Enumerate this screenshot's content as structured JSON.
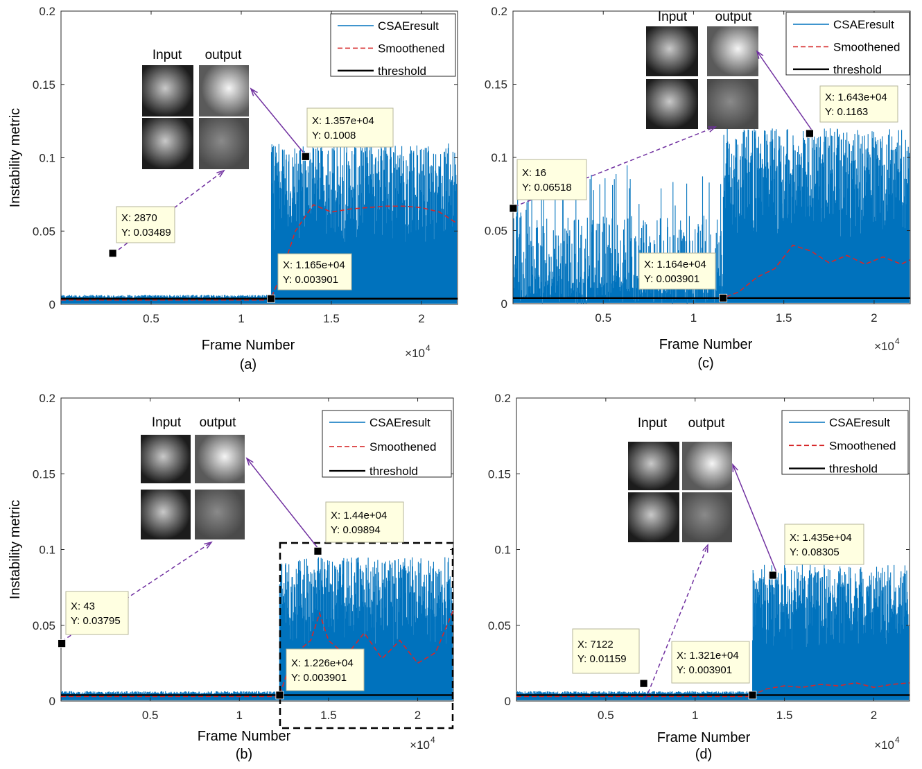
{
  "figure": {
    "ylabel": "Instability metric",
    "xlabel": "Frame Number",
    "x_exponent": "×10",
    "x_exponent_power": "4",
    "legend": [
      "CSAEresult",
      "Smoothened",
      "threshold"
    ],
    "inset_labels": [
      "Input",
      "output"
    ],
    "colors": {
      "series": "#0072BD",
      "smoothed": "#D62728",
      "threshold": "#000000",
      "arrow": "#7030A0",
      "datatip_bg": "#FFFFE1",
      "datatip_border": "#B5B59A"
    }
  },
  "chart_data": [
    {
      "panel": "(a)",
      "type": "line",
      "xlim": [
        0,
        22000
      ],
      "ylim": [
        0,
        0.2
      ],
      "xticks": [
        "0.5",
        "1",
        "1.5",
        "2"
      ],
      "yticks": [
        "0",
        "0.05",
        "0.1",
        "0.15",
        "0.2"
      ],
      "threshold": 0.003901,
      "onset": 11650,
      "noise_high": [
        0.002,
        0.11
      ],
      "smoothened": {
        "x": [
          11650,
          12200,
          13000,
          14000,
          15000,
          16000,
          17000,
          18000,
          19000,
          20000,
          21000,
          22000
        ],
        "y": [
          0.004,
          0.02,
          0.05,
          0.068,
          0.063,
          0.065,
          0.066,
          0.067,
          0.067,
          0.066,
          0.063,
          0.055
        ]
      },
      "datatips": [
        {
          "x": 2870,
          "y": 0.03489,
          "label_x": "X: 2870",
          "label_y": "Y: 0.03489"
        },
        {
          "x": 11650,
          "y": 0.003901,
          "label_x": "X: 1.165e+04",
          "label_y": "Y: 0.003901"
        },
        {
          "x": 13570,
          "y": 0.1008,
          "label_x": "X: 1.357e+04",
          "label_y": "Y: 0.1008"
        }
      ],
      "dashed_box": false
    },
    {
      "panel": "(c)",
      "type": "line",
      "xlim": [
        0,
        22000
      ],
      "ylim": [
        0,
        0.2
      ],
      "xticks": [
        "0.5",
        "1",
        "1.5",
        "2"
      ],
      "yticks": [
        "0",
        "0.05",
        "0.1",
        "0.15",
        "0.2"
      ],
      "threshold": 0.003901,
      "onset": 11640,
      "noise_low": [
        0.0,
        0.12
      ],
      "noise_high": [
        0.002,
        0.12
      ],
      "smoothened": {
        "x": [
          0,
          11640,
          12500,
          13500,
          14500,
          15500,
          16500,
          17500,
          18500,
          19500,
          20500,
          21500,
          22000
        ],
        "y": [
          0.004,
          0.004,
          0.008,
          0.018,
          0.024,
          0.04,
          0.036,
          0.028,
          0.033,
          0.027,
          0.032,
          0.027,
          0.03
        ]
      },
      "datatips": [
        {
          "x": 16,
          "y": 0.06518,
          "label_x": "X: 16",
          "label_y": "Y: 0.06518"
        },
        {
          "x": 11640,
          "y": 0.003901,
          "label_x": "X: 1.164e+04",
          "label_y": "Y: 0.003901"
        },
        {
          "x": 16430,
          "y": 0.1163,
          "label_x": "X: 1.643e+04",
          "label_y": "Y: 0.1163"
        }
      ],
      "dashed_box": false
    },
    {
      "panel": "(b)",
      "type": "line",
      "xlim": [
        0,
        22000
      ],
      "ylim": [
        0,
        0.2
      ],
      "xticks": [
        "0.5",
        "1",
        "1.5",
        "2"
      ],
      "yticks": [
        "0",
        "0.05",
        "0.1",
        "0.15",
        "0.2"
      ],
      "threshold": 0.003901,
      "onset": 12260,
      "noise_high": [
        0.002,
        0.095
      ],
      "smoothened": {
        "x": [
          12260,
          13000,
          14000,
          14500,
          15000,
          16000,
          17000,
          18000,
          19000,
          20000,
          21000,
          22000
        ],
        "y": [
          0.004,
          0.03,
          0.04,
          0.058,
          0.04,
          0.03,
          0.045,
          0.028,
          0.04,
          0.025,
          0.032,
          0.06
        ]
      },
      "datatips": [
        {
          "x": 43,
          "y": 0.03795,
          "label_x": "X: 43",
          "label_y": "Y: 0.03795"
        },
        {
          "x": 12260,
          "y": 0.003901,
          "label_x": "X: 1.226e+04",
          "label_y": "Y: 0.003901"
        },
        {
          "x": 14400,
          "y": 0.09894,
          "label_x": "X: 1.44e+04",
          "label_y": "Y: 0.09894"
        }
      ],
      "dashed_box": true
    },
    {
      "panel": "(d)",
      "type": "line",
      "xlim": [
        0,
        22000
      ],
      "ylim": [
        0,
        0.2
      ],
      "xticks": [
        "0.5",
        "1",
        "1.5",
        "2"
      ],
      "yticks": [
        "0",
        "0.05",
        "0.1",
        "0.15",
        "0.2"
      ],
      "threshold": 0.003901,
      "onset": 13210,
      "noise_high": [
        0.002,
        0.09
      ],
      "smoothened": {
        "x": [
          13210,
          14000,
          15000,
          16000,
          17000,
          18000,
          19000,
          20000,
          21000,
          22000
        ],
        "y": [
          0.004,
          0.008,
          0.01,
          0.009,
          0.011,
          0.01,
          0.012,
          0.009,
          0.011,
          0.012
        ]
      },
      "datatips": [
        {
          "x": 7122,
          "y": 0.01159,
          "label_x": "X: 7122",
          "label_y": "Y: 0.01159"
        },
        {
          "x": 13210,
          "y": 0.003901,
          "label_x": "X: 1.321e+04",
          "label_y": "Y: 0.003901"
        },
        {
          "x": 14350,
          "y": 0.08305,
          "label_x": "X: 1.435e+04",
          "label_y": "Y: 0.08305"
        }
      ],
      "dashed_box": false
    }
  ]
}
